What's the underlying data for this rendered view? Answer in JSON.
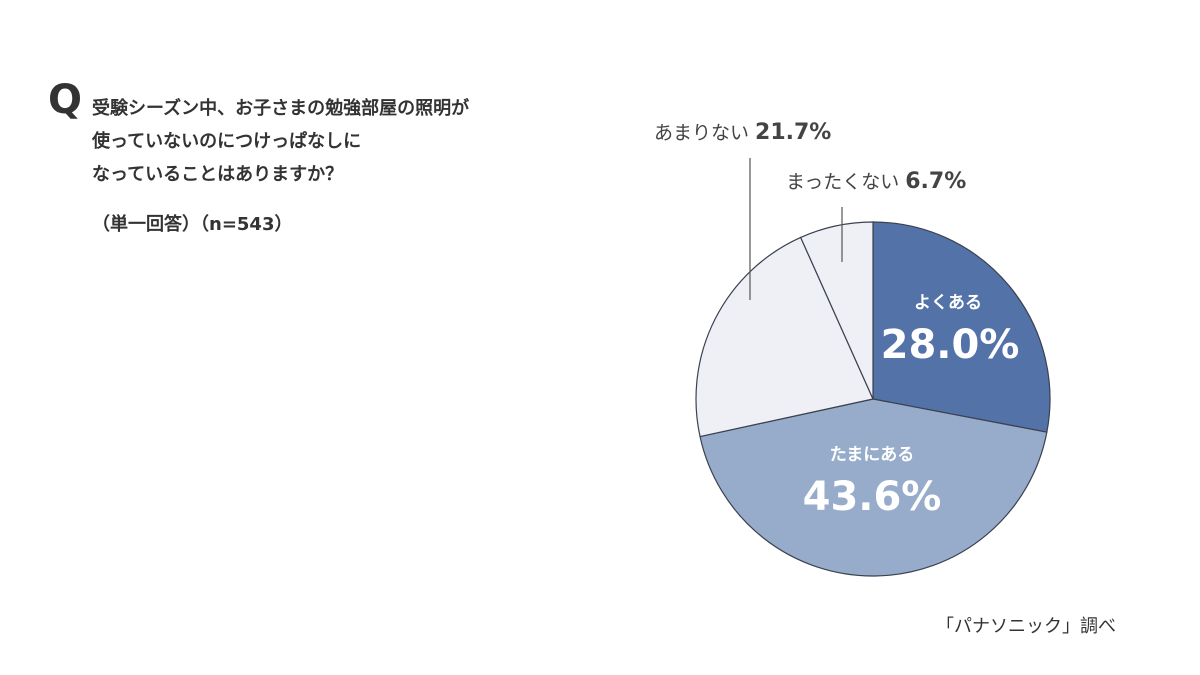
{
  "question": {
    "mark": "Q",
    "lines": [
      "受験シーズン中、お子さまの勉強部屋の照明が",
      "使っていないのにつけっぱなしに",
      "なっていることはありますか？"
    ],
    "note": "（単一回答）（n=543）"
  },
  "source": "「パナソニック」調べ",
  "colors": {
    "often": "#5272a8",
    "sometimes": "#97acca",
    "rarely": "#eef0f5",
    "never": "#eef0f5",
    "stroke": "#3b4150"
  },
  "chart_data": {
    "type": "pie",
    "title": "受験シーズン中、お子さまの勉強部屋の照明が使っていないのにつけっぱなしになっていることはありますか？（単一回答）（n=543）",
    "categories": [
      "よくある",
      "たまにある",
      "あまりない",
      "まったくない"
    ],
    "values": [
      28.0,
      43.6,
      21.7,
      6.7
    ],
    "labels": [
      "28.0%",
      "43.6%",
      "21.7%",
      "6.7%"
    ],
    "start_angle": "12 o'clock, clockwise",
    "legend": "none (direct labels)",
    "source": "「パナソニック」調べ"
  },
  "labels": {
    "often": {
      "name": "よくある",
      "pct": "28.0%"
    },
    "sometimes": {
      "name": "たまにある",
      "pct": "43.6%"
    },
    "rarely": {
      "name": "あまりない",
      "pct": "21.7%"
    },
    "never": {
      "name": "まったくない",
      "pct": "6.7%"
    }
  }
}
